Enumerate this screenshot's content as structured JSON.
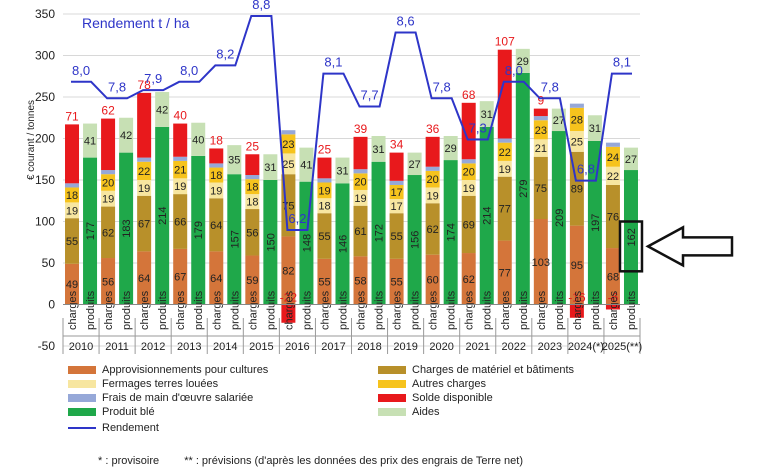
{
  "chart_data": {
    "type": "bar",
    "ylabel": "€ courant / tonnes",
    "ylim": [
      -50,
      350
    ],
    "yticks": [
      -50,
      0,
      50,
      100,
      150,
      200,
      250,
      300,
      350
    ],
    "years": [
      "2010",
      "2011",
      "2012",
      "2013",
      "2014",
      "2015",
      "2016",
      "2017",
      "2018",
      "2019",
      "2020",
      "2021",
      "2022",
      "2023",
      "2024(*)",
      "2025(**)"
    ],
    "bar_kinds": [
      "charges",
      "produits"
    ],
    "charges": {
      "approvisionnements": [
        49,
        56,
        64,
        67,
        64,
        59,
        82,
        55,
        58,
        55,
        60,
        62,
        77,
        103,
        95,
        68
      ],
      "materiel": [
        55,
        62,
        67,
        66,
        64,
        56,
        75,
        55,
        61,
        55,
        62,
        69,
        77,
        75,
        89,
        76
      ],
      "fermages": [
        19,
        19,
        19,
        19,
        19,
        18,
        25,
        18,
        19,
        17,
        19,
        19,
        19,
        21,
        25,
        22
      ],
      "autres": [
        18,
        20,
        22,
        21,
        18,
        18,
        23,
        19,
        20,
        17,
        20,
        20,
        22,
        23,
        28,
        24
      ],
      "main_oeuvre": [
        5,
        5,
        5,
        5,
        5,
        5,
        5,
        5,
        5,
        5,
        5,
        5,
        5,
        5,
        5,
        5
      ],
      "solde": [
        71,
        62,
        78,
        40,
        18,
        25,
        -22,
        25,
        39,
        34,
        36,
        68,
        107,
        9,
        -16,
        -6
      ]
    },
    "produits": {
      "produit_ble": [
        177,
        183,
        214,
        179,
        157,
        150,
        148,
        146,
        172,
        156,
        174,
        214,
        279,
        209,
        197,
        162
      ],
      "aides": [
        41,
        42,
        42,
        40,
        35,
        31,
        41,
        31,
        31,
        27,
        29,
        31,
        29,
        27,
        31,
        27
      ]
    },
    "rendement": {
      "name": "Rendement t / ha",
      "values": [
        8.0,
        7.8,
        7.9,
        8.0,
        8.2,
        8.8,
        6.2,
        8.1,
        7.7,
        8.6,
        7.8,
        7.3,
        8.0,
        7.8,
        6.8,
        8.1
      ],
      "labels": [
        "8,0",
        "7,8",
        "7,9",
        "8,0",
        "8,2",
        "8,8",
        "6,2",
        "8,1",
        "7,7",
        "8,6",
        "7,8",
        "7,3",
        "8,0",
        "7,8",
        "6,8",
        "8,1"
      ]
    },
    "colors": {
      "approvisionnements": "#d4753a",
      "materiel": "#b8902a",
      "fermages": "#f7e6a0",
      "autres": "#f6c31d",
      "main_oeuvre": "#96a8d8",
      "solde": "#e8191c",
      "produit_ble": "#1fa84a",
      "aides": "#c7e0b4",
      "rendement": "#2e35c8"
    },
    "legend": {
      "approvisionnements": "Approvisionnements pour cultures",
      "materiel": "Charges de matériel et bâtiments",
      "fermages": "Fermages terres louées",
      "autres": "Autres charges",
      "main_oeuvre": "Frais de main d'œuvre salariée",
      "solde": "Solde disponible",
      "produit_ble": "Produit blé",
      "aides": "Aides",
      "rendement": "Rendement"
    },
    "highlight": {
      "year_index": 15,
      "bar": "produits",
      "value": 162
    }
  },
  "footnotes": {
    "provisoire": "* : provisoire",
    "previsions": "** : prévisions (d'après les données des prix des engrais de Terre net)"
  }
}
